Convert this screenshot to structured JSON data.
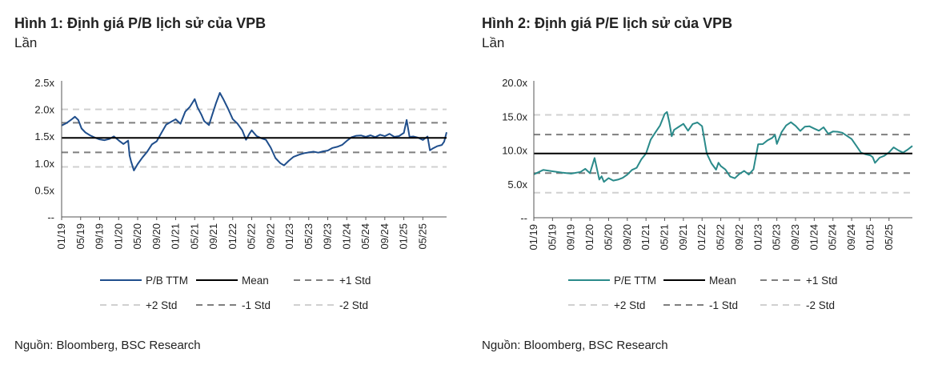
{
  "chart_data": [
    {
      "type": "line",
      "title": "Hình 1: Định giá P/B lịch sử của VPB",
      "unit": "Lần",
      "source": "Nguồn: Bloomberg, BSC Research",
      "y_ticks": [
        "2.5x",
        "2.0x",
        "1.5x",
        "1.0x",
        "0.5x",
        "--"
      ],
      "y_tick_values": [
        2.5,
        2.0,
        1.5,
        1.0,
        0.5,
        0.0
      ],
      "ylim": [
        0,
        2.5
      ],
      "x_ticks": [
        "01/19",
        "05/19",
        "09/19",
        "01/20",
        "05/20",
        "09/20",
        "01/21",
        "05/21",
        "09/21",
        "01/22",
        "05/22",
        "09/22",
        "01/23",
        "05/23",
        "09/23",
        "01/24",
        "05/24",
        "09/24",
        "01/25",
        "05/25"
      ],
      "x_range_months": [
        0,
        81
      ],
      "series": [
        {
          "name": "P/B TTM",
          "color": "#1f4e8c",
          "x": [
            0,
            1,
            2,
            2.8,
            3.5,
            4.2,
            5,
            6,
            7,
            8,
            9,
            10,
            11,
            12,
            13,
            14,
            14.3,
            14.6,
            15.2,
            16,
            17,
            18,
            19,
            20,
            21,
            22,
            23,
            24,
            25,
            26,
            27,
            28,
            28.6,
            29.4,
            30,
            31,
            31.6,
            32.5,
            33.3,
            34,
            35,
            36,
            37,
            38,
            38.8,
            39.5,
            40,
            41,
            42,
            43,
            44,
            45,
            46,
            46.8,
            47.8,
            48.8,
            50,
            51,
            52,
            53,
            54,
            55,
            56,
            57,
            58,
            59,
            60,
            61,
            62,
            63,
            64,
            65,
            66,
            67,
            68,
            69,
            70,
            71,
            72,
            72.6,
            73.2,
            74,
            75,
            76,
            77,
            77.5,
            78,
            79,
            80,
            80.5,
            81
          ],
          "values": [
            1.7,
            1.75,
            1.82,
            1.88,
            1.82,
            1.66,
            1.58,
            1.52,
            1.47,
            1.43,
            1.41,
            1.43,
            1.48,
            1.41,
            1.35,
            1.42,
            1.15,
            1.05,
            0.88,
            1.0,
            1.12,
            1.22,
            1.35,
            1.4,
            1.55,
            1.7,
            1.75,
            1.8,
            1.72,
            1.95,
            2.05,
            2.2,
            2.05,
            1.92,
            1.8,
            1.72,
            1.88,
            2.12,
            2.3,
            2.18,
            2.0,
            1.8,
            1.72,
            1.6,
            1.43,
            1.55,
            1.62,
            1.52,
            1.48,
            1.45,
            1.3,
            1.1,
            1.0,
            0.95,
            1.03,
            1.1,
            1.14,
            1.17,
            1.19,
            1.21,
            1.2,
            1.23,
            1.25,
            1.3,
            1.32,
            1.35,
            1.42,
            1.48,
            1.5,
            1.5,
            1.47,
            1.5,
            1.47,
            1.52,
            1.5,
            1.55,
            1.5,
            1.52,
            1.58,
            1.82,
            1.5,
            1.5,
            1.47,
            1.42,
            1.48,
            1.22,
            1.25,
            1.3,
            1.33,
            1.4,
            1.58
          ]
        },
        {
          "name": "Mean",
          "color": "#000000",
          "dash": "",
          "value": 1.47
        },
        {
          "name": "+1 Std",
          "color": "#7f7f7f",
          "dash": "8 6",
          "value": 1.75
        },
        {
          "name": "+2 Std",
          "color": "#d0d0d0",
          "dash": "8 6",
          "value": 2.0
        },
        {
          "name": "-1 Std",
          "color": "#7f7f7f",
          "dash": "8 6",
          "value": 1.2
        },
        {
          "name": "-2 Std",
          "color": "#d0d0d0",
          "dash": "8 6",
          "value": 0.93
        }
      ]
    },
    {
      "type": "line",
      "title": "Hình 2: Định giá P/E lịch sử của VPB",
      "unit": "Lần",
      "source": "Nguồn: Bloomberg, BSC Research",
      "y_ticks": [
        "20.0x",
        "15.0x",
        "10.0x",
        "5.0x",
        "--"
      ],
      "y_tick_values": [
        20,
        15,
        10,
        5,
        0
      ],
      "ylim": [
        0,
        20
      ],
      "x_ticks": [
        "01/19",
        "05/19",
        "09/19",
        "01/20",
        "05/20",
        "09/20",
        "01/21",
        "05/21",
        "09/21",
        "01/22",
        "05/22",
        "09/22",
        "01/23",
        "05/23",
        "09/23",
        "01/24",
        "05/24",
        "09/24",
        "01/25",
        "05/25"
      ],
      "x_range_months": [
        0,
        81
      ],
      "series": [
        {
          "name": "P/E TTM",
          "color": "#2a8a8a",
          "x": [
            0,
            2,
            4,
            6,
            8,
            10,
            11,
            12,
            13,
            14,
            14.5,
            15,
            16,
            17,
            18,
            19,
            20,
            21,
            22,
            23,
            24,
            25,
            26,
            27,
            28,
            28.5,
            29,
            29.5,
            30,
            31,
            32,
            33,
            34,
            35,
            36,
            37,
            38,
            39,
            39.5,
            40,
            41,
            42,
            43,
            44,
            45,
            46,
            47,
            48,
            49,
            50,
            51,
            51.6,
            52,
            53,
            54,
            55,
            56,
            57,
            58,
            59,
            60,
            61,
            62,
            63,
            64,
            65,
            66,
            67,
            68,
            69,
            70,
            71,
            72,
            72.5,
            73,
            74,
            75,
            76,
            77,
            78,
            79,
            80,
            81
          ],
          "values": [
            6.5,
            7.2,
            7.0,
            6.8,
            6.6,
            6.8,
            7.2,
            6.5,
            8.7,
            5.5,
            6.0,
            5.2,
            5.8,
            5.5,
            5.7,
            6.0,
            6.5,
            7.2,
            7.5,
            8.7,
            9.5,
            11.5,
            12.5,
            13.5,
            15.2,
            15.5,
            14.0,
            12.0,
            13.0,
            13.5,
            14.0,
            13.0,
            14.0,
            14.2,
            13.6,
            9.5,
            8.0,
            7.0,
            8.0,
            7.5,
            7.0,
            6.0,
            5.8,
            6.5,
            7.0,
            6.5,
            7.3,
            11.0,
            11.0,
            11.5,
            11.8,
            12.2,
            10.8,
            12.5,
            13.5,
            14.0,
            13.5,
            12.8,
            13.5,
            13.6,
            13.3,
            13.0,
            13.5,
            12.5,
            12.8,
            12.7,
            12.5,
            12.0,
            11.5,
            10.5,
            9.5,
            9.3,
            9.2,
            9.0,
            8.2,
            9.0,
            9.3,
            9.8,
            10.5,
            10.0,
            9.6,
            10.0,
            10.5
          ]
        },
        {
          "name": "Mean",
          "color": "#000000",
          "dash": "",
          "value": 9.5
        },
        {
          "name": "+1 Std",
          "color": "#7f7f7f",
          "dash": "8 6",
          "value": 12.3
        },
        {
          "name": "+2 Std",
          "color": "#d0d0d0",
          "dash": "8 6",
          "value": 15.2
        },
        {
          "name": "-1 Std",
          "color": "#7f7f7f",
          "dash": "8 6",
          "value": 6.6
        },
        {
          "name": "-2 Std",
          "color": "#d0d0d0",
          "dash": "8 6",
          "value": 3.7
        }
      ]
    }
  ]
}
